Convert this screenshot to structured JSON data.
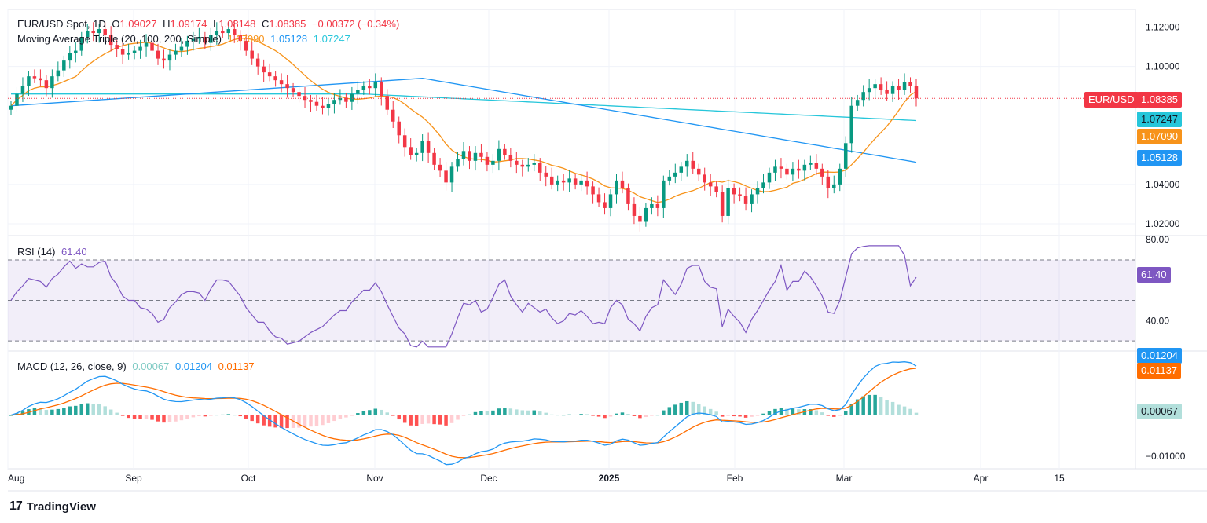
{
  "header": {
    "symbol": "EUR/USD Spot, 1D",
    "open_label": "O",
    "open": "1.09027",
    "high_label": "H",
    "high": "1.09174",
    "low_label": "L",
    "low": "1.08148",
    "close_label": "C",
    "close": "1.08385",
    "change": "−0.00372 (−0.34%)"
  },
  "ma_legend": {
    "label": "Moving Average Triple (20, 100, 200, Simple)",
    "ma20": "1.07090",
    "ma100": "1.05128",
    "ma200": "1.07247"
  },
  "rsi_legend": {
    "label": "RSI (14)",
    "value": "61.40"
  },
  "macd_legend": {
    "label": "MACD (12, 26, close, 9)",
    "hist": "0.00067",
    "macd": "0.01204",
    "signal": "0.01137"
  },
  "price_tags": {
    "symbol_tag": "EUR/USD",
    "last": "1.08385",
    "ma200": "1.07247",
    "ma20": "1.07090",
    "ma100": "1.05128",
    "rsi": "61.40",
    "macd": "0.01204",
    "signal": "0.01137",
    "hist": "0.00067"
  },
  "colors": {
    "up": "#089981",
    "down": "#f23645",
    "ma20": "#f7931a",
    "ma100": "#2196f3",
    "ma200": "#26c6da",
    "rsi": "#7e57c2",
    "macd": "#2196f3",
    "signal": "#ff6d00",
    "hist_up_strong": "#26a69a",
    "hist_up_weak": "#b2dfdb",
    "hist_down_strong": "#ff5252",
    "hist_down_weak": "#ffcdd2"
  },
  "branding": {
    "name": "TradingView"
  },
  "chart_data": [
    {
      "type": "candlestick",
      "title": "EUR/USD Spot, 1D",
      "ylim": [
        1.014,
        1.129
      ],
      "y_ticks": [
        "1.12000",
        "1.10000",
        "1.04000",
        "1.02000"
      ],
      "x_tick_labels": [
        "Aug",
        "Sep",
        "Oct",
        "Nov",
        "Dec",
        "2025",
        "Feb",
        "Mar",
        "Apr",
        "15"
      ],
      "close_series_approx": [
        1.08,
        1.086,
        1.09,
        1.095,
        1.094,
        1.093,
        1.089,
        1.095,
        1.098,
        1.103,
        1.107,
        1.108,
        1.115,
        1.118,
        1.117,
        1.119,
        1.116,
        1.111,
        1.109,
        1.106,
        1.107,
        1.108,
        1.11,
        1.112,
        1.108,
        1.104,
        1.103,
        1.106,
        1.108,
        1.11,
        1.113,
        1.114,
        1.115,
        1.112,
        1.116,
        1.118,
        1.117,
        1.119,
        1.116,
        1.113,
        1.108,
        1.104,
        1.1,
        1.097,
        1.095,
        1.093,
        1.091,
        1.089,
        1.087,
        1.085,
        1.083,
        1.082,
        1.08,
        1.079,
        1.081,
        1.083,
        1.084,
        1.082,
        1.086,
        1.088,
        1.09,
        1.089,
        1.092,
        1.085,
        1.078,
        1.072,
        1.065,
        1.059,
        1.055,
        1.056,
        1.062,
        1.056,
        1.05,
        1.047,
        1.041,
        1.049,
        1.053,
        1.057,
        1.052,
        1.056,
        1.054,
        1.05,
        1.052,
        1.058,
        1.055,
        1.052,
        1.05,
        1.049,
        1.05,
        1.051,
        1.046,
        1.044,
        1.04,
        1.042,
        1.041,
        1.043,
        1.04,
        1.042,
        1.039,
        1.035,
        1.031,
        1.028,
        1.035,
        1.042,
        1.038,
        1.03,
        1.024,
        1.021,
        1.028,
        1.03,
        1.028,
        1.042,
        1.044,
        1.046,
        1.049,
        1.052,
        1.048,
        1.045,
        1.041,
        1.039,
        1.036,
        1.024,
        1.038,
        1.035,
        1.034,
        1.03,
        1.035,
        1.038,
        1.041,
        1.046,
        1.049,
        1.048,
        1.045,
        1.048,
        1.047,
        1.05,
        1.051,
        1.048,
        1.044,
        1.038,
        1.04,
        1.048,
        1.061,
        1.08,
        1.083,
        1.087,
        1.089,
        1.091,
        1.088,
        1.086,
        1.09,
        1.088,
        1.092,
        1.09,
        1.0838
      ]
    },
    {
      "type": "line",
      "title": "RSI (14)",
      "ylim": [
        25,
        82
      ],
      "y_ticks": [
        "80.00",
        "40.00"
      ],
      "levels": [
        70,
        50,
        30
      ],
      "last_value": 61.4
    },
    {
      "type": "bar",
      "title": "MACD (12, 26, close, 9)",
      "ylim": [
        -0.013,
        0.0155
      ],
      "y_ticks": [
        "−0.01000"
      ],
      "series": [
        {
          "name": "MACD",
          "last": 0.01204
        },
        {
          "name": "Signal",
          "last": 0.01137
        },
        {
          "name": "Histogram",
          "last": 0.00067
        }
      ]
    }
  ]
}
